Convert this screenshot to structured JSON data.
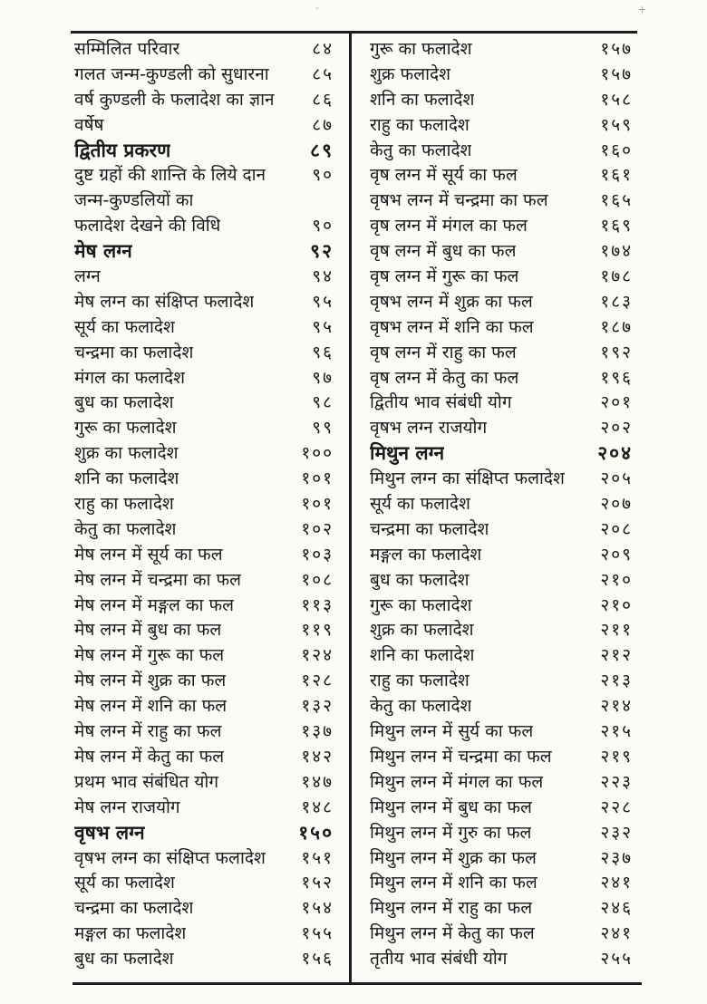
{
  "page": {
    "kind": "scanned Hindi book table of contents",
    "paper_color": "#fbfbf8",
    "ink_color": "#1c1c1c"
  },
  "artifacts": {
    "dash": "-",
    "plus": "+"
  },
  "toc": {
    "left": [
      {
        "title": "सम्मिलित परिवार",
        "page": "८४"
      },
      {
        "title": "गलत जन्म-कुण्डली को सुधारना",
        "page": "८५"
      },
      {
        "title": "वर्ष कुण्डली के फलादेश का ज्ञान",
        "page": "८६"
      },
      {
        "title": "वर्षेष",
        "page": "८७"
      },
      {
        "title": "द्वितीय प्रकरण",
        "page": "८९",
        "bold": true
      },
      {
        "title": "दुष्ट ग्रहों की शान्ति के लिये दान",
        "page": "९०"
      },
      {
        "title": "जन्म-कुण्डलियों का",
        "page": ""
      },
      {
        "title": "फलादेश देखने की विधि",
        "page": "९०"
      },
      {
        "title": "मेष लग्न",
        "page": "९२",
        "bold": true
      },
      {
        "title": "लग्न",
        "page": "९४"
      },
      {
        "title": "मेष लग्न का संक्षिप्त फलादेश",
        "page": "९५"
      },
      {
        "title": "सूर्य का फलादेश",
        "page": "९५"
      },
      {
        "title": "चन्द्रमा का फलादेश",
        "page": "९६"
      },
      {
        "title": "मंगल का फलादेश",
        "page": "९७"
      },
      {
        "title": "बुध का फलादेश",
        "page": "९८"
      },
      {
        "title": "गुरू का फलादेश",
        "page": "९९"
      },
      {
        "title": "शुक्र का फलादेश",
        "page": "१००"
      },
      {
        "title": "शनि का फलादेश",
        "page": "१०१"
      },
      {
        "title": "राहु का फलादेश",
        "page": "१०१"
      },
      {
        "title": "केतु का फलादेश",
        "page": "१०२"
      },
      {
        "title": "मेष लग्न में सूर्य का फल",
        "page": "१०३"
      },
      {
        "title": "मेष लग्न में चन्द्रमा का फल",
        "page": "१०८"
      },
      {
        "title": "मेष लग्न में मङ्गल का फल",
        "page": "११३"
      },
      {
        "title": "मेष लग्न में बुध का फल",
        "page": "११९"
      },
      {
        "title": "मेष लग्न में गुरू का फल",
        "page": "१२४"
      },
      {
        "title": "मेष लग्न में शुक्र का फल",
        "page": "१२८"
      },
      {
        "title": "मेष लग्न में शनि का फल",
        "page": "१३२"
      },
      {
        "title": "मेष लग्न में राहु का फल",
        "page": "१३७"
      },
      {
        "title": "मेष लग्न में केतु का फल",
        "page": "१४२"
      },
      {
        "title": "प्रथम भाव संबंधित योग",
        "page": "१४७"
      },
      {
        "title": "मेष लग्न राजयोग",
        "page": "१४८"
      },
      {
        "title": "वृषभ लग्न",
        "page": "१५०",
        "bold": true
      },
      {
        "title": "वृषभ लग्न का संक्षिप्त फलादेश",
        "page": "१५१"
      },
      {
        "title": "सूर्य का फलादेश",
        "page": "१५२"
      },
      {
        "title": "चन्द्रमा का फलादेश",
        "page": "१५४"
      },
      {
        "title": "मङ्गल का फलादेश",
        "page": "१५५"
      },
      {
        "title": "बुध का फलादेश",
        "page": "१५६"
      }
    ],
    "right": [
      {
        "title": "गुरू का फलादेश",
        "page": "१५७"
      },
      {
        "title": "शुक्र फलादेश",
        "page": "१५७"
      },
      {
        "title": "शनि का फलादेश",
        "page": "१५८"
      },
      {
        "title": "राहु का फलादेश",
        "page": "१५९"
      },
      {
        "title": "केतु का फलादेश",
        "page": "१६०"
      },
      {
        "title": "वृष लग्न में सूर्य का फल",
        "page": "१६१"
      },
      {
        "title": "वृषभ लग्न में चन्द्रमा का फल",
        "page": "१६५"
      },
      {
        "title": "वृष लग्न में मंगल का फल",
        "page": "१६९"
      },
      {
        "title": "वृष लग्न में बुध का फल",
        "page": "१७४"
      },
      {
        "title": "वृष लग्न में गुरू का फल",
        "page": "१७८"
      },
      {
        "title": "वृषभ लग्न में शुक्र का फल",
        "page": "१८३"
      },
      {
        "title": "वृषभ लग्न में शनि का फल",
        "page": "१८७"
      },
      {
        "title": "वृष लग्न में राहु का फल",
        "page": "१९२"
      },
      {
        "title": "वृष लग्न में केतु का फल",
        "page": "१९६"
      },
      {
        "title": "द्वितीय भाव संबंधी योग",
        "page": "२०१"
      },
      {
        "title": "वृषभ लग्न राजयोग",
        "page": "२०२"
      },
      {
        "title": "मिथुन लग्न",
        "page": "२०४",
        "bold": true
      },
      {
        "title": "मिथुन लग्न का संक्षिप्त फलादेश",
        "page": "२०५"
      },
      {
        "title": "सूर्य का फलादेश",
        "page": "२०७"
      },
      {
        "title": "चन्द्रमा का फलादेश",
        "page": "२०८"
      },
      {
        "title": "मङ्गल का फलादेश",
        "page": "२०९"
      },
      {
        "title": "बुध का फलादेश",
        "page": "२१०"
      },
      {
        "title": "गुरू का फलादेश",
        "page": "२१०"
      },
      {
        "title": "शुक्र का फलादेश",
        "page": "२११"
      },
      {
        "title": "शनि का फलादेश",
        "page": "२१२"
      },
      {
        "title": "राहु का फलादेश",
        "page": "२१३"
      },
      {
        "title": "केतु का फलादेश",
        "page": "२१४"
      },
      {
        "title": "मिथुन लग्न में सुर्य का फल",
        "page": "२१५"
      },
      {
        "title": "मिथुन लग्न में चन्द्रमा का फल",
        "page": "२१९"
      },
      {
        "title": "मिथुन लग्न में मंगल का फल",
        "page": "२२३"
      },
      {
        "title": "मिथुन लग्न में बुध का फल",
        "page": "२२८"
      },
      {
        "title": "मिथुन लग्न में गुरु का फल",
        "page": "२३२"
      },
      {
        "title": "मिथुन लग्न में शुक्र का फल",
        "page": "२३७"
      },
      {
        "title": "मिथुन लग्न में शनि का फल",
        "page": "२४१"
      },
      {
        "title": "मिथुन लग्न में राहु का फल",
        "page": "२४६"
      },
      {
        "title": "मिथुन लग्न में केतु का फल",
        "page": "२४१"
      },
      {
        "title": "तृतीय भाव संबंधी योग",
        "page": "२५५"
      }
    ]
  }
}
